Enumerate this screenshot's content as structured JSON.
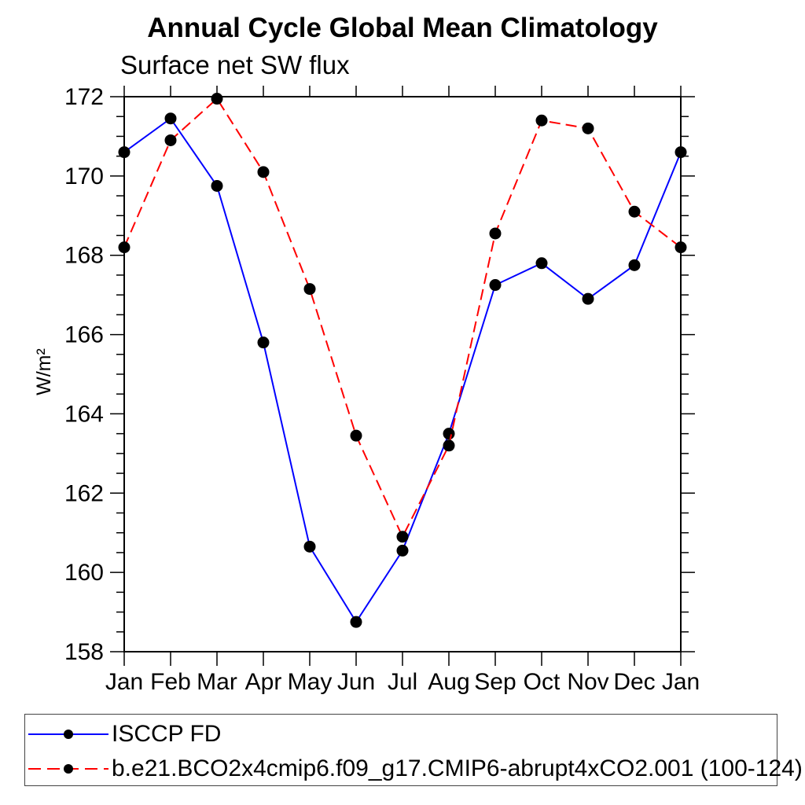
{
  "title": "Annual Cycle Global Mean Climatology",
  "subtitle": "Surface net SW flux",
  "y_axis_label": "W/m²",
  "legend": {
    "marker_color": "#000000",
    "items": [
      {
        "label": "ISCCP FD",
        "color": "#0000ff",
        "style": "solid"
      },
      {
        "label": "b.e21.BCO2x4cmip6.f09_g17.CMIP6-abrupt4xCO2.001 (100-124)",
        "color": "#ff0000",
        "style": "dashed"
      }
    ]
  },
  "chart_data": {
    "type": "line",
    "title": "Annual Cycle Global Mean Climatology",
    "subtitle": "Surface net SW flux",
    "ylabel": "W/m²",
    "categories": [
      "Jan",
      "Feb",
      "Mar",
      "Apr",
      "May",
      "Jun",
      "Jul",
      "Aug",
      "Sep",
      "Oct",
      "Nov",
      "Dec",
      "Jan"
    ],
    "series": [
      {
        "name": "ISCCP FD",
        "color": "#0000ff",
        "line_style": "solid",
        "marker": "filled-circle",
        "marker_color": "#000000",
        "values": [
          170.6,
          171.45,
          169.75,
          165.8,
          160.65,
          158.75,
          160.55,
          163.5,
          167.25,
          167.8,
          166.9,
          167.75,
          170.6
        ]
      },
      {
        "name": "b.e21.BCO2x4cmip6.f09_g17.CMIP6-abrupt4xCO2.001 (100-124)",
        "color": "#ff0000",
        "line_style": "dashed",
        "marker": "filled-circle",
        "marker_color": "#000000",
        "values": [
          168.2,
          170.9,
          171.95,
          170.1,
          167.15,
          163.45,
          160.9,
          163.2,
          168.55,
          171.4,
          171.2,
          169.1,
          168.2
        ]
      }
    ],
    "ylim": [
      158,
      172
    ],
    "ytick_major": 2,
    "ytick_minor": 0.5,
    "grid": false,
    "frame": true,
    "tick_direction": "out",
    "legend_position": "bottom-left"
  }
}
